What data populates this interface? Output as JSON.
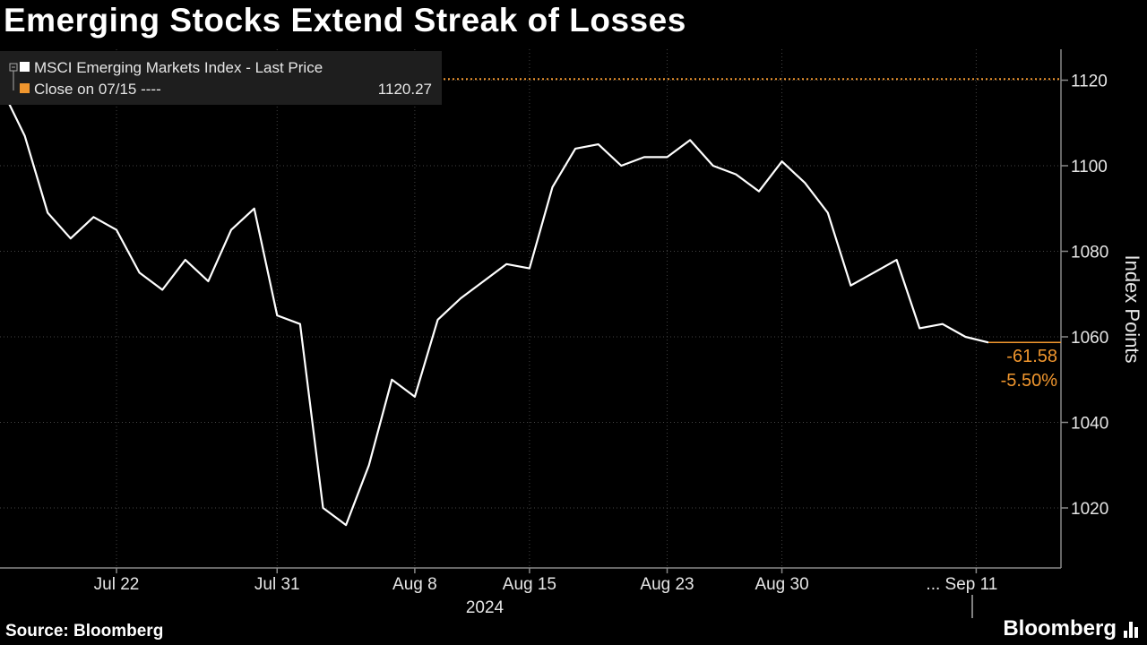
{
  "title": "Emerging Stocks Extend Streak of Losses",
  "source": "Source: Bloomberg",
  "brand": "Bloomberg",
  "brand_icon": "bar-chart-icon",
  "colors": {
    "background": "#000000",
    "line": "#ffffff",
    "reference": "#f0962e",
    "grid": "#444444"
  },
  "chart_data": {
    "type": "line",
    "title": "Emerging Stocks Extend Streak of Losses",
    "xlabel": "2024",
    "ylabel": "Index Points",
    "ylim": [
      1005,
      1128
    ],
    "yticks": [
      1020,
      1040,
      1060,
      1080,
      1100,
      1120
    ],
    "xtick_labels": [
      "Jul 22",
      "Jul 31",
      "Aug 8",
      "Aug 15",
      "Aug 23",
      "Aug 30",
      "... Sep 11"
    ],
    "x_year_label": "2024",
    "grid": true,
    "legend_position": "top-left",
    "legend": [
      {
        "name": "MSCI Emerging Markets Index - Last Price",
        "color": "#ffffff",
        "value": ""
      },
      {
        "name": "Close on 07/15 ----",
        "color": "#f0962e",
        "value": "1120.27"
      }
    ],
    "reference_line": {
      "label": "Close on 07/15",
      "value": 1120.27
    },
    "change_labels": [
      "-61.58",
      "-5.50%"
    ],
    "series": [
      {
        "name": "MSCI Emerging Markets Index - Last Price",
        "x": [
          "07/15",
          "07/16",
          "07/17",
          "07/18",
          "07/19",
          "07/22",
          "07/23",
          "07/24",
          "07/25",
          "07/26",
          "07/29",
          "07/30",
          "07/31",
          "08/01",
          "08/02",
          "08/05",
          "08/06",
          "08/07",
          "08/08",
          "08/09",
          "08/12",
          "08/13",
          "08/14",
          "08/15",
          "08/16",
          "08/19",
          "08/20",
          "08/21",
          "08/22",
          "08/23",
          "08/26",
          "08/27",
          "08/28",
          "08/29",
          "08/30",
          "09/02",
          "09/03",
          "09/04",
          "09/05",
          "09/06",
          "09/09",
          "09/10",
          "09/11",
          "09/12"
        ],
        "values": [
          1118,
          1107,
          1089,
          1083,
          1088,
          1085,
          1075,
          1071,
          1078,
          1073,
          1085,
          1090,
          1065,
          1063,
          1020,
          1016,
          1030,
          1050,
          1046,
          1064,
          1069,
          1073,
          1077,
          1076,
          1095,
          1104,
          1105,
          1100,
          1102,
          1102,
          1106,
          1100,
          1098,
          1094,
          1101,
          1096,
          1089,
          1072,
          1075,
          1078,
          1062,
          1063,
          1060,
          1058.69
        ]
      }
    ]
  }
}
